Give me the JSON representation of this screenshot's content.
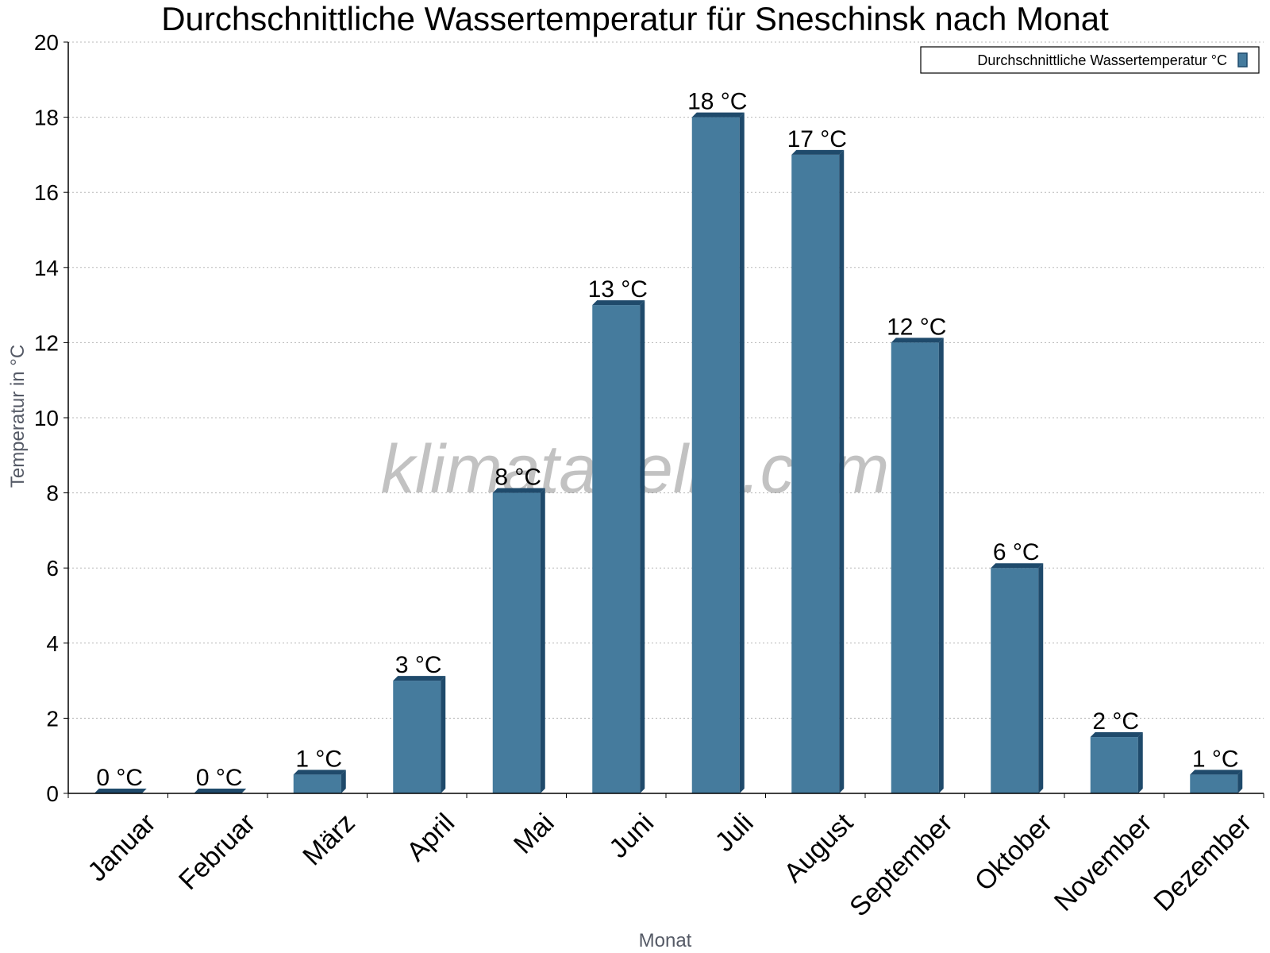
{
  "chart_data": {
    "type": "bar",
    "title": "Durchschnittliche Wassertemperatur für Sneschinsk nach Monat",
    "xlabel": "Monat",
    "ylabel": "Temperatur in °C",
    "ylim": [
      0,
      20
    ],
    "yticks": [
      0,
      2,
      4,
      6,
      8,
      10,
      12,
      14,
      16,
      18,
      20
    ],
    "grid": true,
    "legend_position": "top-right",
    "categories": [
      "Januar",
      "Februar",
      "März",
      "April",
      "Mai",
      "Juni",
      "Juli",
      "August",
      "September",
      "Oktober",
      "November",
      "Dezember"
    ],
    "series": [
      {
        "name": "Durchschnittliche Wassertemperatur °C",
        "values": [
          0,
          0,
          0.5,
          3,
          8,
          13,
          18,
          17,
          12,
          6,
          1.5,
          0.5
        ],
        "labels": [
          "0 °C",
          "0 °C",
          "1 °C",
          "3 °C",
          "8 °C",
          "13 °C",
          "18 °C",
          "17 °C",
          "12 °C",
          "6 °C",
          "2 °C",
          "1 °C"
        ],
        "color": "#457b9d",
        "shade_color": "#1f4a6b"
      }
    ],
    "watermark": "klimatabelle.com"
  }
}
